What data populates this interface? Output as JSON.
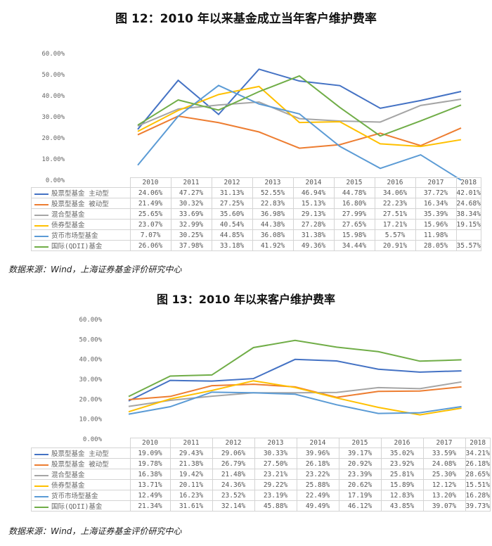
{
  "colors": {
    "equity_active": "#4472C4",
    "equity_passive": "#ED7D31",
    "mixed": "#A5A5A5",
    "bond": "#FFC000",
    "money_market": "#5B9BD5",
    "qdii": "#70AD47"
  },
  "source_text": "数据来源：Wind，上海证券基金评价研究中心",
  "chart_data": [
    {
      "type": "line",
      "title": "图 12：2010 年以来基金成立当年客户维护费率",
      "xlabel": "",
      "ylabel": "",
      "ylim": [
        0,
        60
      ],
      "yticks": [
        "0.00%",
        "10.00%",
        "20.00%",
        "30.00%",
        "40.00%",
        "50.00%",
        "60.00%"
      ],
      "grid": false,
      "legend_position": "data-table",
      "categories": [
        "2010",
        "2011",
        "2012",
        "2013",
        "2014",
        "2015",
        "2016",
        "2017",
        "2018"
      ],
      "series": [
        {
          "name": "股票型基金 主动型",
          "color_key": "equity_active",
          "values": [
            24.06,
            47.27,
            31.13,
            52.55,
            46.94,
            44.78,
            34.06,
            37.72,
            42.01
          ],
          "labels": [
            "24.06%",
            "47.27%",
            "31.13%",
            "52.55%",
            "46.94%",
            "44.78%",
            "34.06%",
            "37.72%",
            "42.01%"
          ]
        },
        {
          "name": "股票型基金 被动型",
          "color_key": "equity_passive",
          "values": [
            21.49,
            30.32,
            27.25,
            22.83,
            15.13,
            16.8,
            22.23,
            16.34,
            24.68
          ],
          "labels": [
            "21.49%",
            "30.32%",
            "27.25%",
            "22.83%",
            "15.13%",
            "16.80%",
            "22.23%",
            "16.34%",
            "24.68%"
          ]
        },
        {
          "name": "混合型基金",
          "color_key": "mixed",
          "values": [
            25.65,
            33.69,
            35.6,
            36.98,
            29.13,
            27.99,
            27.51,
            35.39,
            38.34
          ],
          "labels": [
            "25.65%",
            "33.69%",
            "35.60%",
            "36.98%",
            "29.13%",
            "27.99%",
            "27.51%",
            "35.39%",
            "38.34%"
          ]
        },
        {
          "name": "债券型基金",
          "color_key": "bond",
          "values": [
            23.07,
            32.99,
            40.54,
            44.38,
            27.28,
            27.65,
            17.21,
            15.96,
            19.15
          ],
          "labels": [
            "23.07%",
            "32.99%",
            "40.54%",
            "44.38%",
            "27.28%",
            "27.65%",
            "17.21%",
            "15.96%",
            "19.15%"
          ]
        },
        {
          "name": "货币市场型基金",
          "color_key": "money_market",
          "values": [
            7.07,
            30.25,
            44.85,
            36.08,
            31.38,
            15.98,
            5.57,
            11.98,
            0
          ],
          "labels": [
            "7.07%",
            "30.25%",
            "44.85%",
            "36.08%",
            "31.38%",
            "15.98%",
            "5.57%",
            "11.98%",
            ""
          ]
        },
        {
          "name": "国际(QDII)基金",
          "color_key": "qdii",
          "values": [
            26.06,
            37.98,
            33.18,
            41.92,
            49.36,
            34.44,
            20.91,
            28.05,
            35.57
          ],
          "labels": [
            "26.06%",
            "37.98%",
            "33.18%",
            "41.92%",
            "49.36%",
            "34.44%",
            "20.91%",
            "28.05%",
            "35.57%"
          ]
        }
      ]
    },
    {
      "type": "line",
      "title": "图 13：2010 年以来客户维护费率",
      "xlabel": "",
      "ylabel": "",
      "ylim": [
        0,
        60
      ],
      "yticks": [
        "0.00%",
        "10.00%",
        "20.00%",
        "30.00%",
        "40.00%",
        "50.00%",
        "60.00%"
      ],
      "grid": false,
      "legend_position": "data-table",
      "categories": [
        "2010",
        "2011",
        "2012",
        "2013",
        "2014",
        "2015",
        "2016",
        "2017",
        "2018"
      ],
      "series": [
        {
          "name": "股票型基金 主动型",
          "color_key": "equity_active",
          "values": [
            19.09,
            29.43,
            29.06,
            30.33,
            39.96,
            39.17,
            35.02,
            33.59,
            34.21
          ],
          "labels": [
            "19.09%",
            "29.43%",
            "29.06%",
            "30.33%",
            "39.96%",
            "39.17%",
            "35.02%",
            "33.59%",
            "34.21%"
          ]
        },
        {
          "name": "股票型基金 被动型",
          "color_key": "equity_passive",
          "values": [
            19.78,
            21.38,
            26.79,
            27.5,
            26.18,
            20.92,
            23.92,
            24.08,
            26.18
          ],
          "labels": [
            "19.78%",
            "21.38%",
            "26.79%",
            "27.50%",
            "26.18%",
            "20.92%",
            "23.92%",
            "24.08%",
            "26.18%"
          ]
        },
        {
          "name": "混合型基金",
          "color_key": "mixed",
          "values": [
            16.38,
            19.42,
            21.48,
            23.21,
            23.22,
            23.39,
            25.81,
            25.3,
            28.65
          ],
          "labels": [
            "16.38%",
            "19.42%",
            "21.48%",
            "23.21%",
            "23.22%",
            "23.39%",
            "25.81%",
            "25.30%",
            "28.65%"
          ]
        },
        {
          "name": "债券型基金",
          "color_key": "bond",
          "values": [
            13.71,
            20.11,
            24.36,
            29.22,
            25.88,
            20.62,
            15.89,
            12.12,
            15.51
          ],
          "labels": [
            "13.71%",
            "20.11%",
            "24.36%",
            "29.22%",
            "25.88%",
            "20.62%",
            "15.89%",
            "12.12%",
            "15.51%"
          ]
        },
        {
          "name": "货币市场型基金",
          "color_key": "money_market",
          "values": [
            12.49,
            16.23,
            23.52,
            23.19,
            22.49,
            17.19,
            12.83,
            13.2,
            16.28
          ],
          "labels": [
            "12.49%",
            "16.23%",
            "23.52%",
            "23.19%",
            "22.49%",
            "17.19%",
            "12.83%",
            "13.20%",
            "16.28%"
          ]
        },
        {
          "name": "国际(QDII)基金",
          "color_key": "qdii",
          "values": [
            21.34,
            31.61,
            32.14,
            45.88,
            49.49,
            46.12,
            43.85,
            39.07,
            39.73
          ],
          "labels": [
            "21.34%",
            "31.61%",
            "32.14%",
            "45.88%",
            "49.49%",
            "46.12%",
            "43.85%",
            "39.07%",
            "39.73%"
          ]
        }
      ]
    }
  ]
}
